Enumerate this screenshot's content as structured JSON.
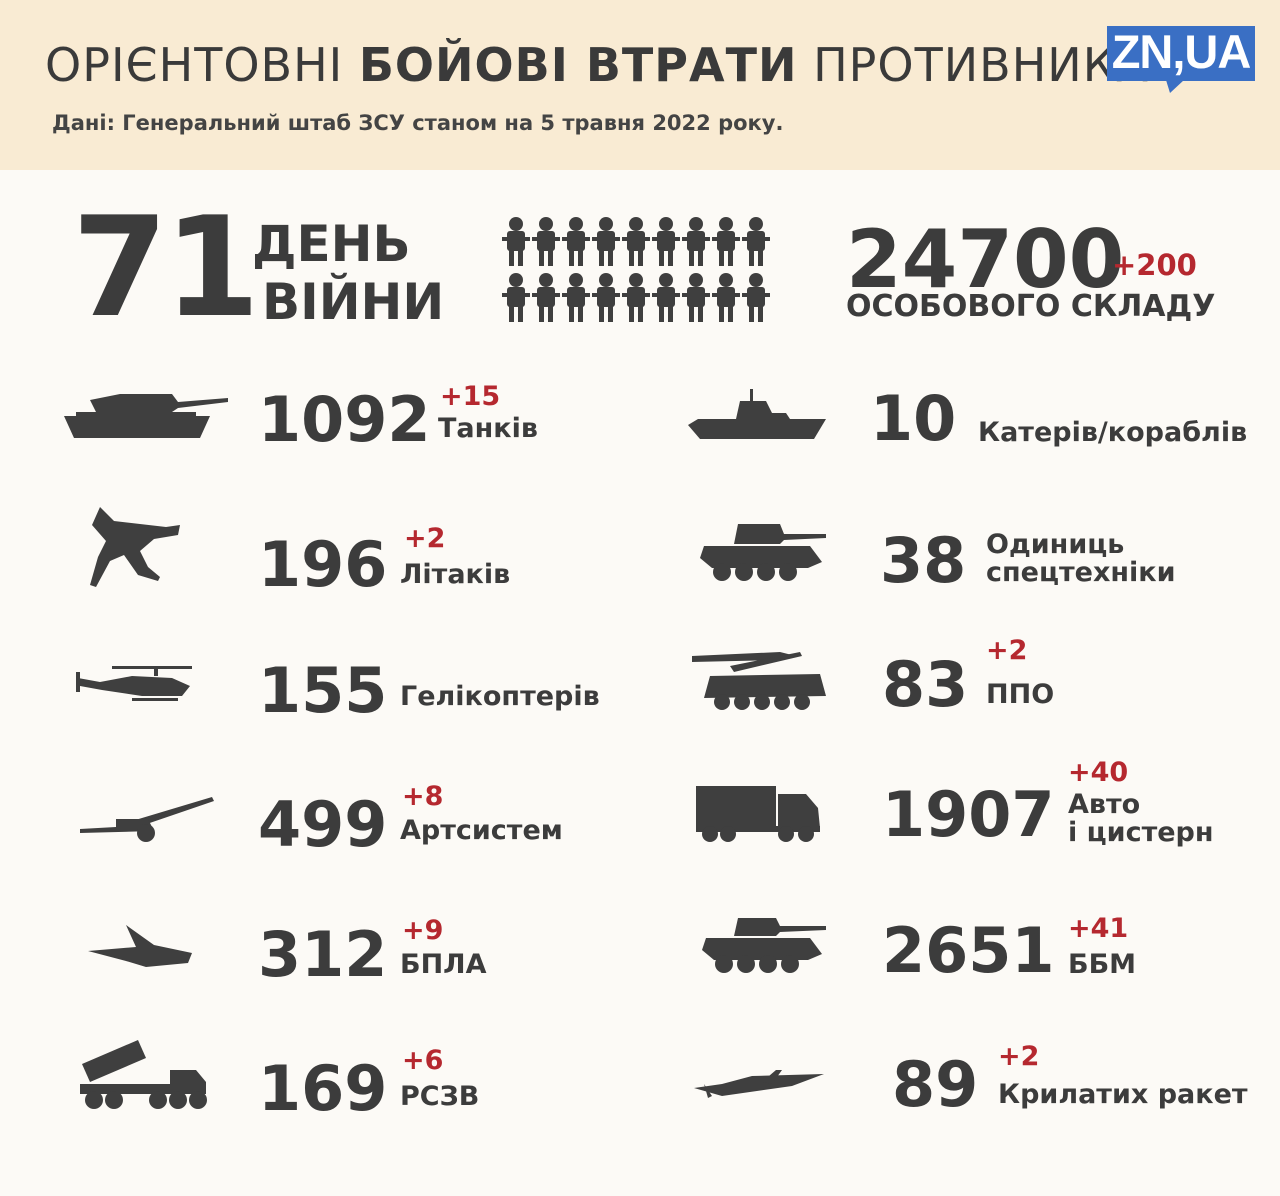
{
  "header": {
    "title_light_1": "ОРІЄНТОВНІ ",
    "title_bold": "БОЙОВІ ВТРАТИ",
    "title_light_2": " ПРОТИВНИКА",
    "subtitle": "Дані: Генеральний штаб ЗСУ станом на 5 травня 2022 року.",
    "logo": "ZN,UA",
    "logo_color": "#3a6fc4",
    "background": "#f9ebd3"
  },
  "war_day": {
    "number": "71",
    "word1": "ДЕНЬ",
    "word2": "ВІЙНИ"
  },
  "personnel": {
    "value": "24700",
    "delta": "+200",
    "label": "ОСОБОВОГО СКЛАДУ",
    "icon": "soldiers-icon"
  },
  "left": [
    {
      "icon": "tank-icon",
      "value": "1092",
      "delta": "+15",
      "label": "Танків"
    },
    {
      "icon": "airplane-icon",
      "value": "196",
      "delta": "+2",
      "label": "Літаків"
    },
    {
      "icon": "helicopter-icon",
      "value": "155",
      "delta": "",
      "label": "Гелікоптерів"
    },
    {
      "icon": "artillery-icon",
      "value": "499",
      "delta": "+8",
      "label": "Артсистем"
    },
    {
      "icon": "drone-icon",
      "value": "312",
      "delta": "+9",
      "label": "БПЛА"
    },
    {
      "icon": "mlrs-icon",
      "value": "169",
      "delta": "+6",
      "label": "РСЗВ"
    }
  ],
  "right": [
    {
      "icon": "ship-icon",
      "value": "10",
      "delta": "",
      "label": "Катерів/кораблів"
    },
    {
      "icon": "special-vehicle-icon",
      "value": "38",
      "delta": "",
      "label1": "Одиниць",
      "label2": "спецтехніки"
    },
    {
      "icon": "air-defense-icon",
      "value": "83",
      "delta": "+2",
      "label": "ППО"
    },
    {
      "icon": "truck-icon",
      "value": "1907",
      "delta": "+40",
      "label1": "Авто",
      "label2": "і цистерн"
    },
    {
      "icon": "ifv-icon",
      "value": "2651",
      "delta": "+41",
      "label": "ББМ"
    },
    {
      "icon": "cruise-missile-icon",
      "value": "89",
      "delta": "+2",
      "label": "Крилатих ракет"
    }
  ],
  "colors": {
    "text": "#3c3c3c",
    "delta": "#b5282f",
    "icon": "#3f3f3f"
  }
}
